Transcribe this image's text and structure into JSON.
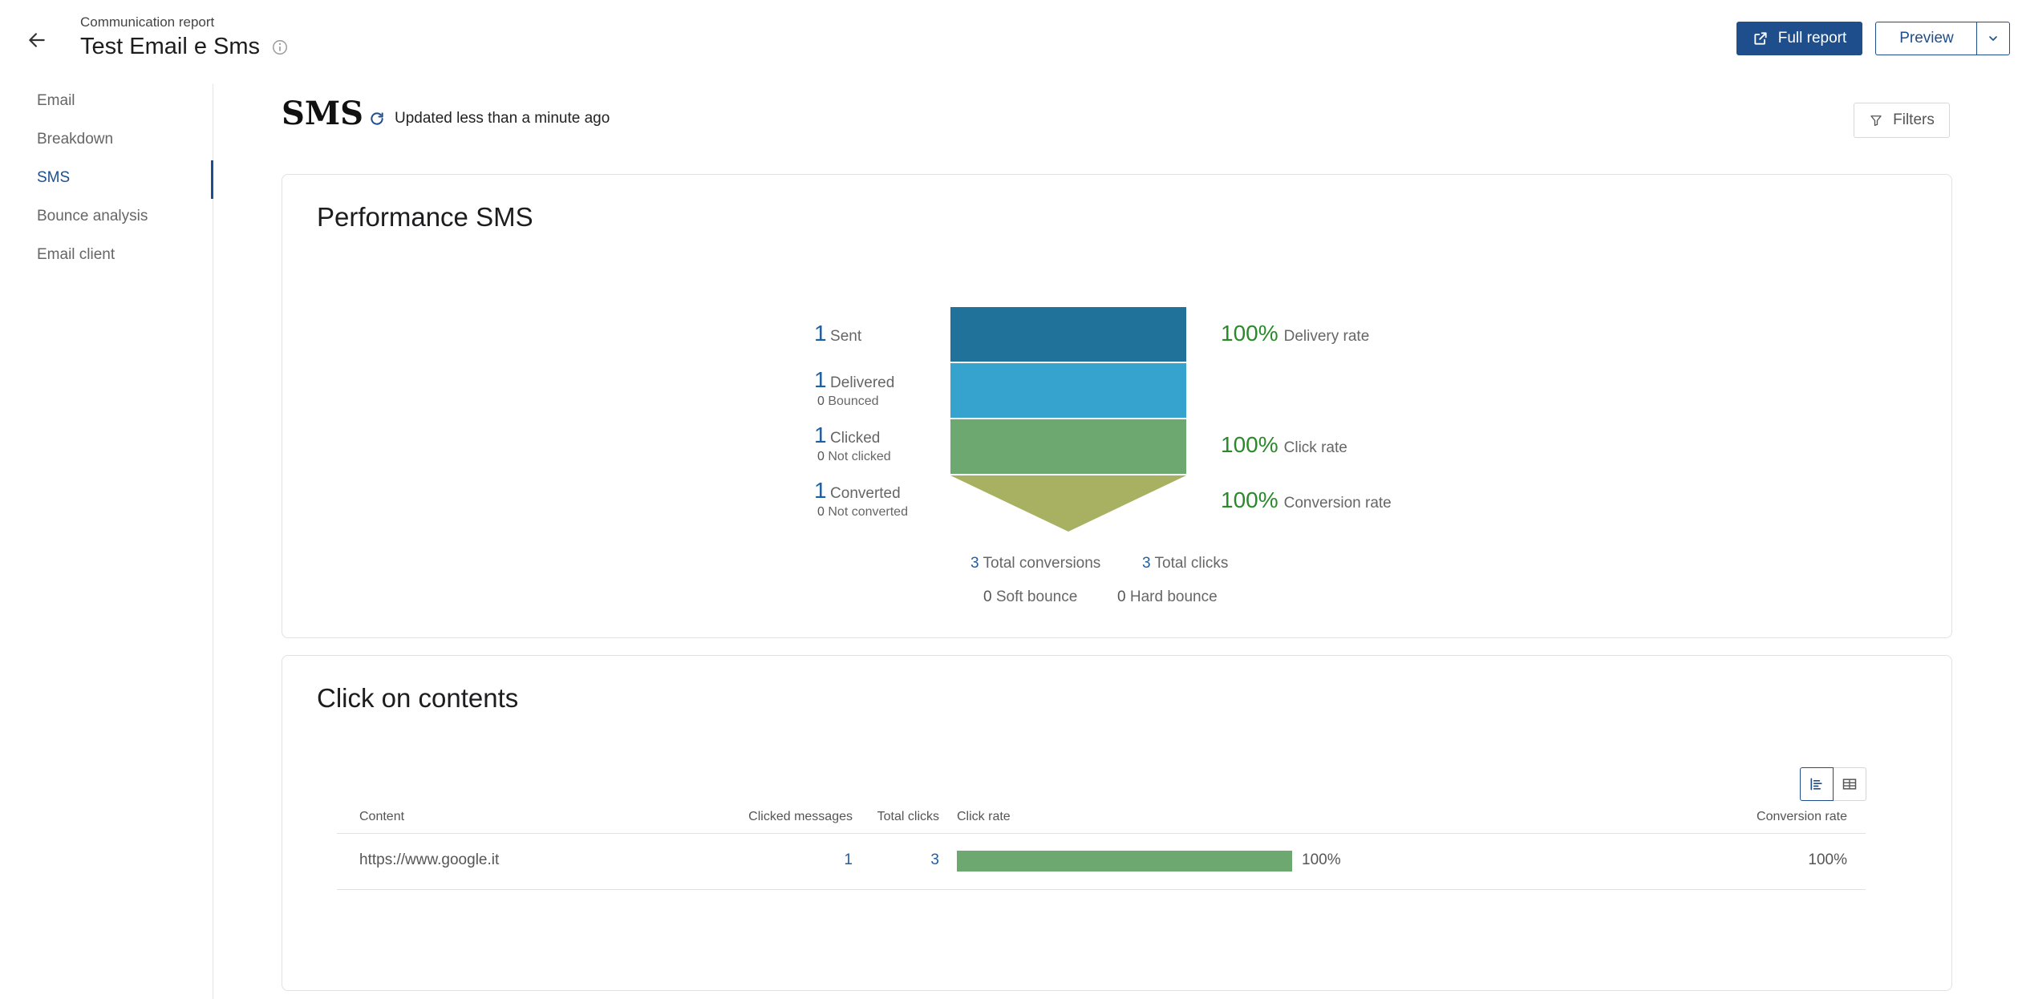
{
  "header": {
    "subtitle": "Communication report",
    "title": "Test Email e Sms",
    "full_report_label": "Full report",
    "preview_label": "Preview"
  },
  "sidebar": {
    "items": [
      {
        "label": "Email"
      },
      {
        "label": "Breakdown"
      },
      {
        "label": "SMS"
      },
      {
        "label": "Bounce analysis"
      },
      {
        "label": "Email client"
      }
    ],
    "active": "SMS"
  },
  "main": {
    "title": "SMS",
    "updated": "Updated less than a minute ago",
    "filters_label": "Filters"
  },
  "performance": {
    "title": "Performance SMS",
    "sent": {
      "value": "1",
      "label": "Sent"
    },
    "delivered": {
      "value": "1",
      "label": "Delivered",
      "sub_value": "0",
      "sub_label": "Bounced"
    },
    "clicked": {
      "value": "1",
      "label": "Clicked",
      "sub_value": "0",
      "sub_label": "Not clicked"
    },
    "converted": {
      "value": "1",
      "label": "Converted",
      "sub_value": "0",
      "sub_label": "Not converted"
    },
    "delivery_rate": {
      "value": "100%",
      "label": "Delivery rate"
    },
    "click_rate": {
      "value": "100%",
      "label": "Click rate"
    },
    "conversion_rate": {
      "value": "100%",
      "label": "Conversion rate"
    },
    "total_conversions": {
      "value": "3",
      "label": "Total conversions"
    },
    "total_clicks": {
      "value": "3",
      "label": "Total clicks"
    },
    "soft_bounce": {
      "value": "0",
      "label": "Soft bounce"
    },
    "hard_bounce": {
      "value": "0",
      "label": "Hard bounce"
    },
    "colors": {
      "sent": "#20729b",
      "delivered": "#36a3cf",
      "clicked": "#6ca86f",
      "converted": "#a8b062"
    }
  },
  "clicks": {
    "title": "Click on contents",
    "columns": {
      "content": "Content",
      "clicked_messages": "Clicked messages",
      "total_clicks": "Total clicks",
      "click_rate": "Click rate",
      "conversion_rate": "Conversion rate"
    },
    "rows": [
      {
        "content": "https://www.google.it",
        "clicked_messages": "1",
        "total_clicks": "3",
        "click_rate": "100%",
        "click_rate_fraction": 1.0,
        "conversion_rate": "100%"
      }
    ]
  }
}
